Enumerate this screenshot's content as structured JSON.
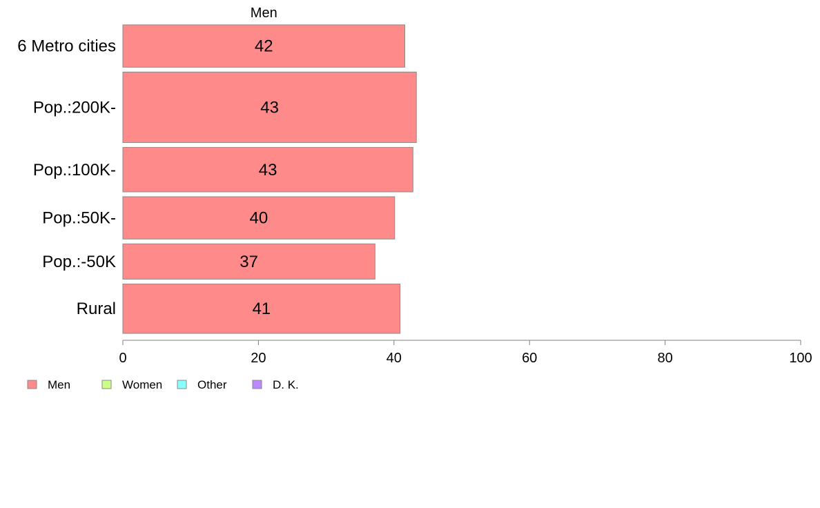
{
  "chart_data": {
    "type": "bar",
    "orientation": "horizontal",
    "stacked": true,
    "top_label": "Men",
    "categories": [
      "6 Metro cities",
      "Pop.:200K-",
      "Pop.:100K-",
      "Pop.:50K-",
      "Pop.:-50K",
      "Rural"
    ],
    "category_weights": [
      0.6,
      1.0,
      0.63,
      0.6,
      0.5,
      0.7
    ],
    "series": [
      {
        "name": "Men",
        "color": "#ff8a8a",
        "values": [
          42,
          43,
          43,
          40,
          37,
          41
        ],
        "bar_values": [
          41.6,
          43.3,
          42.8,
          40.1,
          37.2,
          40.9
        ]
      }
    ],
    "xlim": [
      0,
      100
    ],
    "xticks": [
      0,
      20,
      40,
      60,
      80,
      100
    ],
    "grid": false,
    "legend": {
      "placement": "bottom-left",
      "items": [
        {
          "label": "Men",
          "color": "#ff8a8a"
        },
        {
          "label": "Women",
          "color": "#ccff88"
        },
        {
          "label": "Other",
          "color": "#88ffff"
        },
        {
          "label": "D. K.",
          "color": "#bb88ff"
        }
      ]
    }
  }
}
